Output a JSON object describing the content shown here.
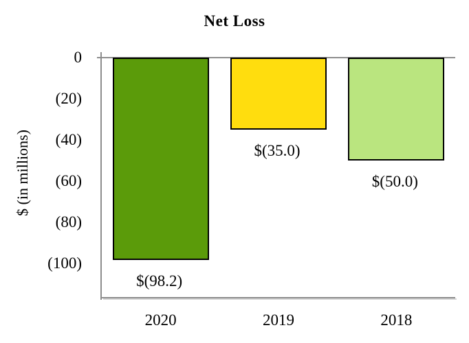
{
  "chart_data": {
    "type": "bar",
    "title": "Net Loss",
    "ylabel": "$ (in millions)",
    "categories": [
      "2020",
      "2019",
      "2018"
    ],
    "values": [
      -98.2,
      -35.0,
      -50.0
    ],
    "bar_labels": [
      "$(98.2)",
      "$(35.0)",
      "$(50.0)"
    ],
    "bar_colors": [
      "#5B9B0A",
      "#FFDD0E",
      "#BAE57F"
    ],
    "bar_border_color": "#000000",
    "axis_color": "#8C8C8C",
    "ytick_labels": [
      "0",
      "(20)",
      "(40)",
      "(60)",
      "(80)",
      "(100)"
    ],
    "ytick_values": [
      0,
      -20,
      -40,
      -60,
      -80,
      -100
    ],
    "ylim": [
      0,
      -117
    ],
    "grid": false,
    "legend": null
  }
}
